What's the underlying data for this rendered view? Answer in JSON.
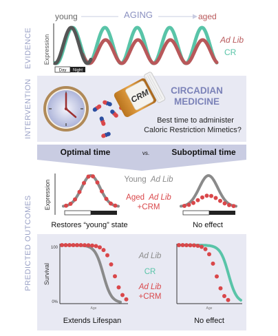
{
  "side_labels": {
    "evidence": "EVIDENCE",
    "intervention": "INTERVENTION",
    "predicted": "PREDICTED OUTCOMES"
  },
  "evidence": {
    "young": "young",
    "aging": "AGING",
    "aged": "aged",
    "expression": "Expression",
    "ad_lib": "Ad Lib",
    "cr": "CR",
    "day": "Day",
    "night": "Night"
  },
  "intervention": {
    "bottle_label": "CRM",
    "title_line1": "CIRCADIAN",
    "title_line2": "MEDICINE",
    "question_line1": "Best time to administer",
    "question_line2": "Caloric Restriction Mimetics?"
  },
  "header": {
    "optimal": "Optimal time",
    "vs": "vs.",
    "suboptimal": "Suboptimal time"
  },
  "expression_panel": {
    "ylabel": "Expression",
    "young_word": "Young",
    "young_adlib": "Ad Lib",
    "aged_word": "Aged",
    "aged_adlib": "Ad Lib",
    "aged_crm": "+CRM",
    "left_caption": "Restores “young” state",
    "right_caption": "No effect"
  },
  "survival_panel": {
    "ylabel": "Survival",
    "tick_100": "100",
    "tick_0": "0%",
    "xlabel": "Age",
    "legend_adlib": "Ad Lib",
    "legend_cr": "CR",
    "legend_adlib2": "Ad Lib",
    "legend_crm": "+CRM",
    "left_caption": "Extends Lifespan",
    "right_caption": "No effect"
  },
  "colors": {
    "adlib": "#b8585a",
    "cr": "#59c4a8",
    "gray": "#8a8a8a",
    "red": "#d9474a",
    "panel": "#e8e9f3",
    "band": "#c9cce2",
    "accent": "#8289bb"
  }
}
